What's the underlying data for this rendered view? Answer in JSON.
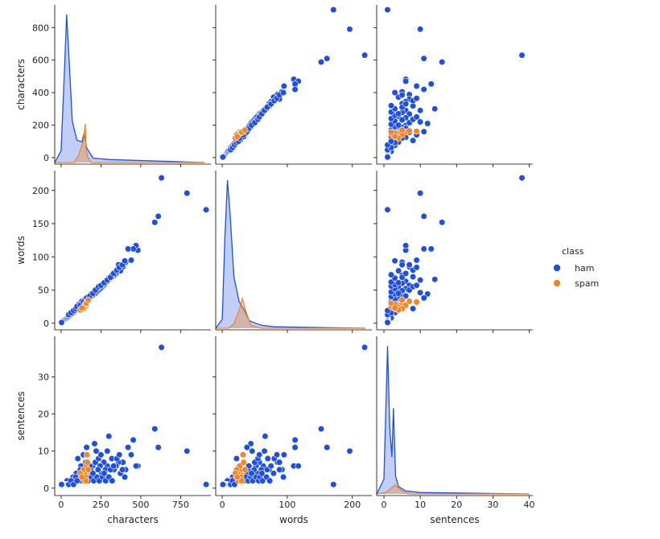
{
  "chart_data": {
    "type": "pairplot",
    "variables": [
      "characters",
      "words",
      "sentences"
    ],
    "axes": {
      "characters": {
        "range": [
          -40,
          940
        ],
        "ticks": [
          0,
          250,
          500,
          750
        ],
        "row_ticks": [
          0,
          200,
          400,
          600,
          800
        ]
      },
      "words": {
        "range": [
          -10,
          230
        ],
        "ticks": [
          0,
          100,
          200
        ],
        "row_ticks": [
          0,
          50,
          100,
          150,
          200
        ]
      },
      "sentences": {
        "range": [
          -2,
          41
        ],
        "ticks": [
          0,
          10,
          20,
          30,
          40
        ],
        "row_ticks": [
          0,
          10,
          20,
          30
        ]
      }
    },
    "legend": {
      "title": "class",
      "placement": "right",
      "entries": [
        {
          "label": "ham",
          "color": "#1f4fe0"
        },
        {
          "label": "spam",
          "color": "#f28528"
        }
      ]
    },
    "series": [
      {
        "name": "ham",
        "color": "#1f4fe0",
        "points": [
          [
            910,
            171,
            1
          ],
          [
            790,
            196,
            10
          ],
          [
            610,
            161,
            11
          ],
          [
            630,
            219,
            38
          ],
          [
            588,
            152,
            16
          ],
          [
            482,
            110,
            6
          ],
          [
            470,
            117,
            6
          ],
          [
            453,
            112,
            13
          ],
          [
            440,
            95,
            9
          ],
          [
            420,
            112,
            11
          ],
          [
            405,
            92,
            5
          ],
          [
            388,
            85,
            7
          ],
          [
            372,
            79,
            4
          ],
          [
            360,
            88,
            7
          ],
          [
            345,
            75,
            6
          ],
          [
            332,
            72,
            5
          ],
          [
            318,
            70,
            8
          ],
          [
            300,
            66,
            14
          ],
          [
            290,
            63,
            6
          ],
          [
            278,
            60,
            5
          ],
          [
            268,
            57,
            7
          ],
          [
            255,
            54,
            4
          ],
          [
            245,
            52,
            6
          ],
          [
            232,
            49,
            5
          ],
          [
            220,
            46,
            10
          ],
          [
            210,
            44,
            12
          ],
          [
            198,
            42,
            6
          ],
          [
            186,
            40,
            5
          ],
          [
            175,
            37,
            4
          ],
          [
            165,
            35,
            3
          ],
          [
            155,
            33,
            7
          ],
          [
            145,
            31,
            5
          ],
          [
            135,
            29,
            4
          ],
          [
            125,
            26,
            6
          ],
          [
            115,
            24,
            3
          ],
          [
            105,
            22,
            8
          ],
          [
            95,
            20,
            4
          ],
          [
            85,
            18,
            2
          ],
          [
            75,
            16,
            3
          ],
          [
            65,
            14,
            2
          ],
          [
            55,
            12,
            1
          ],
          [
            45,
            10,
            1
          ],
          [
            38,
            8,
            2
          ],
          [
            32,
            7,
            1
          ],
          [
            26,
            6,
            1
          ],
          [
            20,
            5,
            1
          ],
          [
            15,
            4,
            1
          ],
          [
            10,
            3,
            1
          ],
          [
            6,
            2,
            1
          ],
          [
            3,
            1,
            1
          ],
          [
            110,
            28,
            2
          ],
          [
            130,
            33,
            2
          ],
          [
            150,
            36,
            3
          ],
          [
            170,
            40,
            2
          ],
          [
            190,
            44,
            3
          ],
          [
            205,
            47,
            2
          ],
          [
            225,
            52,
            3
          ],
          [
            240,
            56,
            2
          ],
          [
            260,
            58,
            3
          ],
          [
            280,
            62,
            2
          ],
          [
            300,
            68,
            3
          ],
          [
            320,
            73,
            2
          ],
          [
            48,
            13,
            1
          ],
          [
            62,
            16,
            2
          ],
          [
            78,
            19,
            1
          ],
          [
            92,
            22,
            3
          ],
          [
            100,
            25,
            2
          ],
          [
            120,
            27,
            5
          ],
          [
            140,
            32,
            9
          ],
          [
            160,
            38,
            11
          ],
          [
            180,
            41,
            6
          ],
          [
            200,
            45,
            4
          ],
          [
            215,
            50,
            7
          ],
          [
            235,
            55,
            8
          ],
          [
            250,
            57,
            9
          ],
          [
            270,
            61,
            4
          ],
          [
            290,
            65,
            10
          ],
          [
            310,
            69,
            5
          ],
          [
            330,
            75,
            6
          ],
          [
            350,
            80,
            8
          ],
          [
            365,
            84,
            9
          ],
          [
            385,
            88,
            5
          ],
          [
            400,
            94,
            3
          ]
        ]
      },
      {
        "name": "spam",
        "color": "#f28528",
        "points": [
          [
            150,
            26,
            3
          ],
          [
            155,
            28,
            4
          ],
          [
            160,
            30,
            5
          ],
          [
            145,
            25,
            2
          ],
          [
            158,
            27,
            6
          ],
          [
            162,
            32,
            9
          ],
          [
            148,
            24,
            4
          ],
          [
            152,
            29,
            3
          ],
          [
            140,
            22,
            5
          ],
          [
            165,
            33,
            7
          ],
          [
            157,
            30,
            2
          ],
          [
            120,
            20,
            4
          ],
          [
            130,
            23,
            3
          ],
          [
            170,
            35,
            5
          ]
        ]
      }
    ],
    "diagonal_kde": {
      "characters": {
        "ham": [
          [
            -40,
            0
          ],
          [
            0,
            8
          ],
          [
            20,
            60
          ],
          [
            35,
            100
          ],
          [
            50,
            70
          ],
          [
            70,
            28
          ],
          [
            100,
            15
          ],
          [
            130,
            14
          ],
          [
            145,
            20
          ],
          [
            160,
            10
          ],
          [
            200,
            3
          ],
          [
            300,
            2
          ],
          [
            900,
            0
          ]
        ],
        "spam": [
          [
            -40,
            0
          ],
          [
            80,
            0
          ],
          [
            110,
            5
          ],
          [
            140,
            15
          ],
          [
            152,
            26
          ],
          [
            156,
            10
          ],
          [
            165,
            4
          ],
          [
            190,
            0
          ],
          [
            900,
            0
          ]
        ]
      },
      "words": {
        "ham": [
          [
            -10,
            0
          ],
          [
            0,
            6
          ],
          [
            4,
            60
          ],
          [
            8,
            100
          ],
          [
            12,
            78
          ],
          [
            18,
            35
          ],
          [
            26,
            18
          ],
          [
            34,
            12
          ],
          [
            42,
            5
          ],
          [
            60,
            2
          ],
          [
            80,
            1
          ],
          [
            220,
            0
          ]
        ],
        "spam": [
          [
            -10,
            0
          ],
          [
            10,
            0
          ],
          [
            18,
            3
          ],
          [
            26,
            12
          ],
          [
            31,
            20
          ],
          [
            36,
            12
          ],
          [
            44,
            2
          ],
          [
            60,
            0
          ],
          [
            220,
            0
          ]
        ]
      },
      "sentences": {
        "ham": [
          [
            -2,
            0
          ],
          [
            0,
            10
          ],
          [
            1,
            100
          ],
          [
            1.6,
            45
          ],
          [
            2.2,
            25
          ],
          [
            2.6,
            58
          ],
          [
            3.2,
            12
          ],
          [
            4,
            5
          ],
          [
            6,
            2
          ],
          [
            10,
            1
          ],
          [
            40,
            0
          ]
        ],
        "spam": [
          [
            -2,
            0
          ],
          [
            0.5,
            1
          ],
          [
            2,
            4
          ],
          [
            3,
            6
          ],
          [
            4,
            4
          ],
          [
            5,
            2
          ],
          [
            7,
            0
          ],
          [
            40,
            0
          ]
        ]
      }
    }
  }
}
